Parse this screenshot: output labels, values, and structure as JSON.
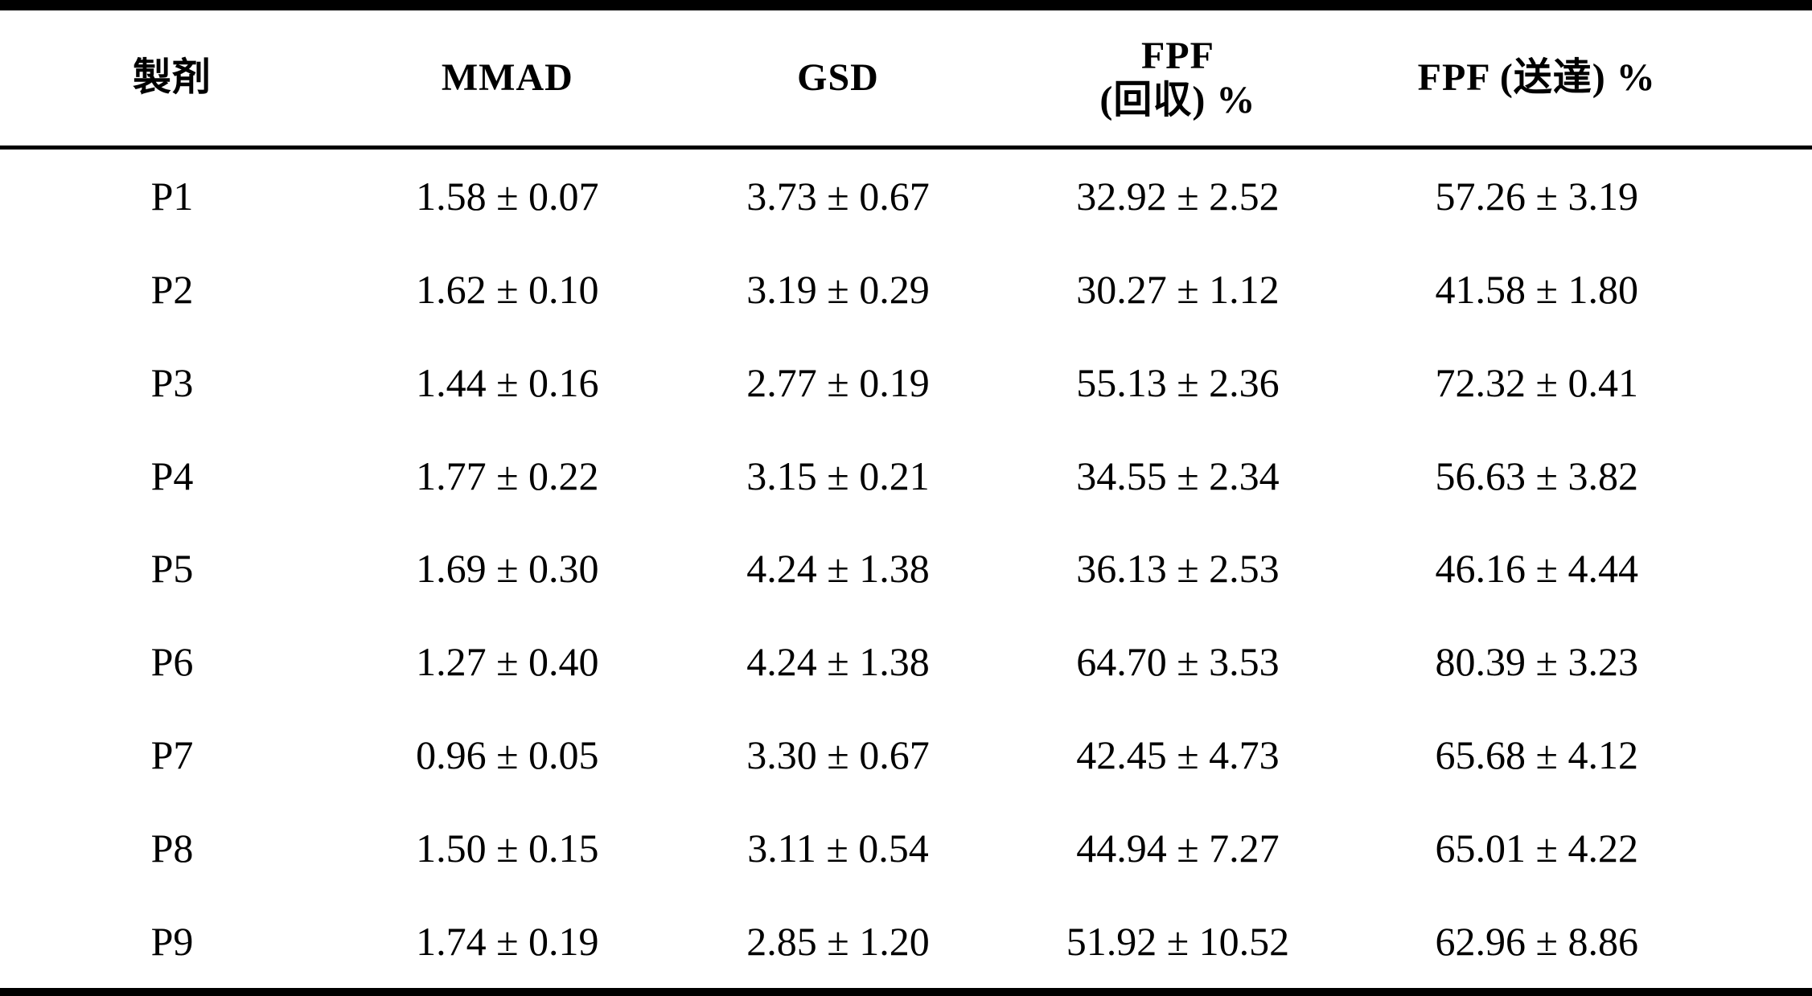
{
  "document": {
    "type": "scanned-table",
    "language": "Japanese",
    "text_color": "#000000",
    "background_color": "#ffffff",
    "rule_color": "#000000"
  },
  "table": {
    "columns": [
      {
        "id": "formulation",
        "lines": [
          "製剤"
        ]
      },
      {
        "id": "mmad",
        "lines": [
          "MMAD"
        ]
      },
      {
        "id": "gsd",
        "lines": [
          "GSD"
        ]
      },
      {
        "id": "fpf-recovered",
        "lines": [
          "FPF",
          "(回収) %"
        ]
      },
      {
        "id": "fpf-delivered",
        "lines": [
          "FPF (送達) %"
        ]
      }
    ],
    "rows": [
      [
        "P1",
        "1.58 ± 0.07",
        "3.73 ± 0.67",
        "32.92 ± 2.52",
        "57.26 ± 3.19"
      ],
      [
        "P2",
        "1.62 ± 0.10",
        "3.19 ± 0.29",
        "30.27 ± 1.12",
        "41.58 ± 1.80"
      ],
      [
        "P3",
        "1.44 ± 0.16",
        "2.77 ± 0.19",
        "55.13 ± 2.36",
        "72.32 ± 0.41"
      ],
      [
        "P4",
        "1.77 ± 0.22",
        "3.15 ± 0.21",
        "34.55 ± 2.34",
        "56.63 ± 3.82"
      ],
      [
        "P5",
        "1.69 ± 0.30",
        "4.24 ± 1.38",
        "36.13 ± 2.53",
        "46.16 ± 4.44"
      ],
      [
        "P6",
        "1.27 ± 0.40",
        "4.24 ± 1.38",
        "64.70 ± 3.53",
        "80.39 ± 3.23"
      ],
      [
        "P7",
        "0.96 ± 0.05",
        "3.30 ± 0.67",
        "42.45 ± 4.73",
        "65.68 ± 4.12"
      ],
      [
        "P8",
        "1.50 ± 0.15",
        "3.11 ± 0.54",
        "44.94 ± 7.27",
        "65.01 ± 4.22"
      ],
      [
        "P9",
        "1.74 ± 0.19",
        "2.85 ± 1.20",
        "51.92 ± 10.52",
        "62.96 ± 8.86"
      ]
    ]
  },
  "chart_data": {
    "type": "table",
    "title": "",
    "categories": [
      "P1",
      "P2",
      "P3",
      "P4",
      "P5",
      "P6",
      "P7",
      "P8",
      "P9"
    ],
    "series": [
      {
        "name": "MMAD",
        "values": [
          1.58,
          1.62,
          1.44,
          1.77,
          1.69,
          1.27,
          0.96,
          1.5,
          1.74
        ]
      },
      {
        "name": "MMAD_sd",
        "values": [
          0.07,
          0.1,
          0.16,
          0.22,
          0.3,
          0.4,
          0.05,
          0.15,
          0.19
        ]
      },
      {
        "name": "GSD",
        "values": [
          3.73,
          3.19,
          2.77,
          3.15,
          4.24,
          4.24,
          3.3,
          3.11,
          2.85
        ]
      },
      {
        "name": "GSD_sd",
        "values": [
          0.67,
          0.29,
          0.19,
          0.21,
          1.38,
          1.38,
          0.67,
          0.54,
          1.2
        ]
      },
      {
        "name": "FPF_recovered_pct",
        "values": [
          32.92,
          30.27,
          55.13,
          34.55,
          36.13,
          64.7,
          42.45,
          44.94,
          51.92
        ]
      },
      {
        "name": "FPF_recovered_pct_sd",
        "values": [
          2.52,
          1.12,
          2.36,
          2.34,
          2.53,
          3.53,
          4.73,
          7.27,
          10.52
        ]
      },
      {
        "name": "FPF_delivered_pct",
        "values": [
          57.26,
          41.58,
          72.32,
          56.63,
          46.16,
          80.39,
          65.68,
          65.01,
          62.96
        ]
      },
      {
        "name": "FPF_delivered_pct_sd",
        "values": [
          3.19,
          1.8,
          0.41,
          3.82,
          4.44,
          3.23,
          4.12,
          4.22,
          8.86
        ]
      }
    ]
  }
}
